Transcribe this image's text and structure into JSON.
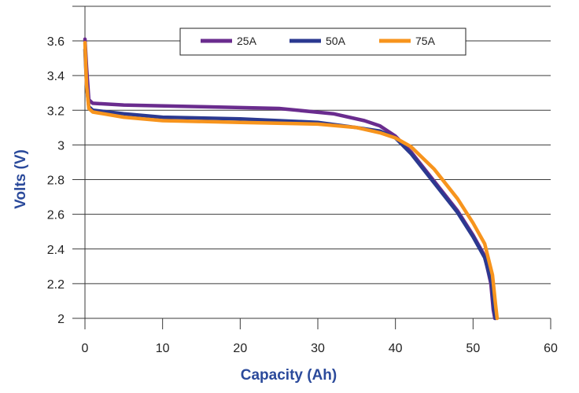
{
  "chart_data": {
    "type": "line",
    "title": "",
    "xlabel": "Capacity (Ah)",
    "ylabel": "Volts (V)",
    "xlim": [
      0,
      60
    ],
    "ylim": [
      2,
      3.6
    ],
    "xticks": [
      "0",
      "10",
      "20",
      "30",
      "40",
      "50",
      "60"
    ],
    "yticks": [
      "2",
      "2.2",
      "2.4",
      "2.6",
      "2.8",
      "3",
      "3.2",
      "3.4",
      "3.6"
    ],
    "grid": "horizontal",
    "legend_position": "top",
    "axis_title_color": "#2b4a9b",
    "series": [
      {
        "name": "25A",
        "color": "#6a2c8e",
        "points": [
          [
            0,
            3.61
          ],
          [
            0.2,
            3.45
          ],
          [
            0.5,
            3.26
          ],
          [
            1,
            3.24
          ],
          [
            5,
            3.23
          ],
          [
            15,
            3.22
          ],
          [
            25,
            3.21
          ],
          [
            32,
            3.18
          ],
          [
            36,
            3.14
          ],
          [
            38,
            3.11
          ],
          [
            40,
            3.05
          ],
          [
            42,
            2.96
          ],
          [
            45,
            2.79
          ],
          [
            48,
            2.62
          ],
          [
            50,
            2.48
          ],
          [
            51.5,
            2.36
          ],
          [
            52.3,
            2.2
          ],
          [
            52.6,
            2.05
          ],
          [
            52.8,
            2.0
          ]
        ]
      },
      {
        "name": "50A",
        "color": "#2b3990",
        "points": [
          [
            0,
            3.55
          ],
          [
            0.2,
            3.35
          ],
          [
            0.5,
            3.22
          ],
          [
            1,
            3.2
          ],
          [
            5,
            3.18
          ],
          [
            10,
            3.16
          ],
          [
            20,
            3.15
          ],
          [
            30,
            3.13
          ],
          [
            35,
            3.1
          ],
          [
            38,
            3.08
          ],
          [
            40,
            3.04
          ],
          [
            42,
            2.95
          ],
          [
            45,
            2.78
          ],
          [
            48,
            2.61
          ],
          [
            50,
            2.47
          ],
          [
            51.5,
            2.35
          ],
          [
            52.4,
            2.2
          ],
          [
            52.7,
            2.05
          ],
          [
            52.9,
            2.0
          ]
        ]
      },
      {
        "name": "75A",
        "color": "#f7941d",
        "points": [
          [
            0,
            3.59
          ],
          [
            0.2,
            3.35
          ],
          [
            0.5,
            3.21
          ],
          [
            1,
            3.19
          ],
          [
            5,
            3.16
          ],
          [
            10,
            3.14
          ],
          [
            20,
            3.13
          ],
          [
            30,
            3.12
          ],
          [
            35,
            3.1
          ],
          [
            38,
            3.07
          ],
          [
            40,
            3.04
          ],
          [
            42,
            2.99
          ],
          [
            45,
            2.86
          ],
          [
            48,
            2.69
          ],
          [
            50,
            2.55
          ],
          [
            51.5,
            2.43
          ],
          [
            52.5,
            2.25
          ],
          [
            52.9,
            2.08
          ],
          [
            53.1,
            2.0
          ]
        ]
      }
    ]
  }
}
